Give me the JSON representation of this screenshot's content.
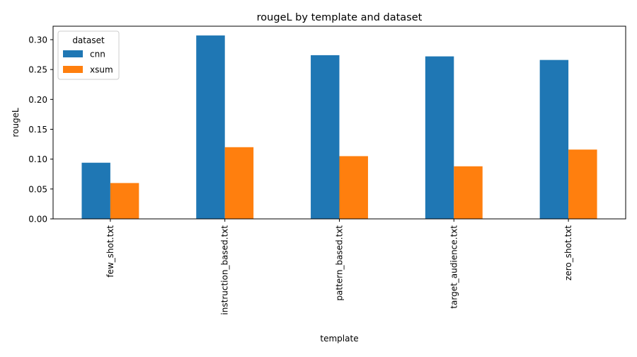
{
  "chart_data": {
    "type": "bar",
    "title": "rougeL by template and dataset",
    "xlabel": "template",
    "ylabel": "rougeL",
    "categories": [
      "few_shot.txt",
      "instruction_based.txt",
      "pattern_based.txt",
      "target_audience.txt",
      "zero_shot.txt"
    ],
    "series": [
      {
        "name": "cnn",
        "color": "#1f77b4",
        "values": [
          0.094,
          0.307,
          0.274,
          0.272,
          0.266
        ]
      },
      {
        "name": "xsum",
        "color": "#ff7f0e",
        "values": [
          0.06,
          0.12,
          0.105,
          0.088,
          0.116
        ]
      }
    ],
    "ylim": [
      0,
      0.3225
    ],
    "yticks": [
      "0.00",
      "0.05",
      "0.10",
      "0.15",
      "0.20",
      "0.25",
      "0.30"
    ],
    "legend": {
      "title": "dataset",
      "placement": "top-left"
    },
    "grid": false
  }
}
